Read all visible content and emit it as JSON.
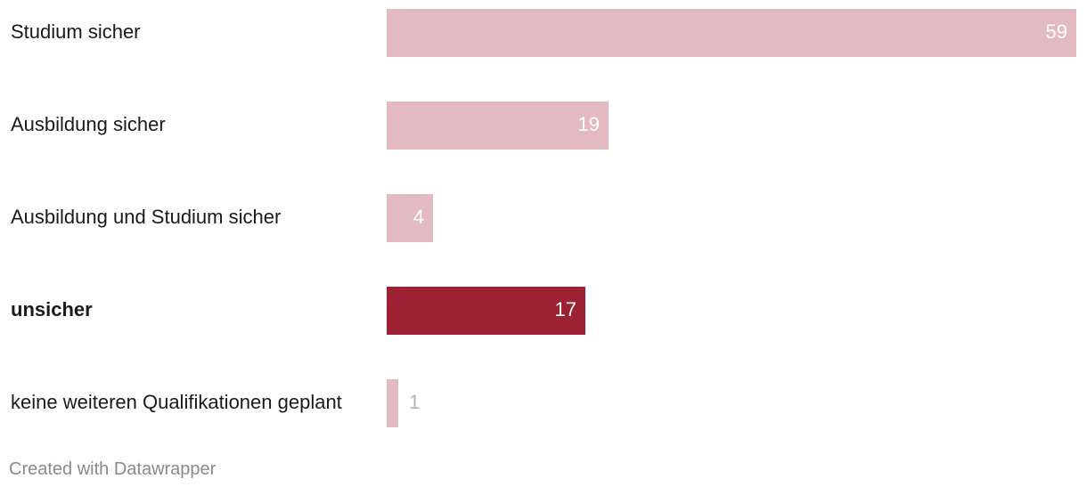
{
  "chart_data": {
    "type": "bar",
    "orientation": "horizontal",
    "categories": [
      "Studium sicher",
      "Ausbildung sicher",
      "Ausbildung und Studium sicher",
      "unsicher",
      "keine weiteren Qualifikationen geplant"
    ],
    "values": [
      59,
      19,
      4,
      17,
      1
    ],
    "value_labels": [
      "59",
      "19",
      "4",
      "17",
      "1"
    ],
    "highlight": [
      false,
      false,
      false,
      true,
      false
    ],
    "colors": {
      "default": "#e3bac2",
      "highlight": "#9c2233",
      "label_inside": "#ffffff",
      "label_outside": "#b3b3b3"
    },
    "xlim": [
      0,
      59
    ],
    "title": "",
    "xlabel": "",
    "ylabel": "",
    "grid": false,
    "legend": "none"
  },
  "footer": {
    "credit": "Created with Datawrapper"
  }
}
